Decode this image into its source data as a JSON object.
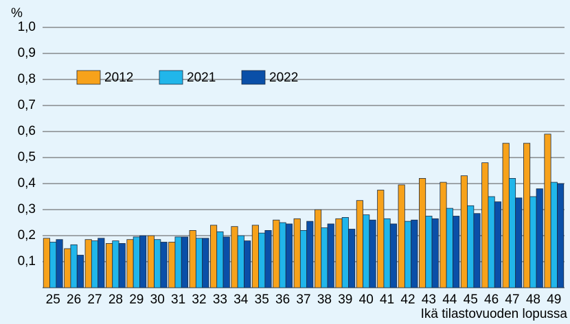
{
  "chart_data": {
    "type": "bar",
    "y_label": "%",
    "x_label": "Ikä tilastovuoden lopussa",
    "categories": [
      "25",
      "26",
      "27",
      "28",
      "29",
      "30",
      "31",
      "32",
      "33",
      "34",
      "35",
      "36",
      "37",
      "38",
      "39",
      "40",
      "41",
      "42",
      "43",
      "44",
      "45",
      "46",
      "47",
      "48",
      "49"
    ],
    "series": [
      {
        "name": "2012",
        "color": "#f7a21b",
        "values": [
          0.19,
          0.15,
          0.185,
          0.17,
          0.185,
          0.2,
          0.175,
          0.22,
          0.24,
          0.235,
          0.24,
          0.26,
          0.265,
          0.3,
          0.265,
          0.335,
          0.375,
          0.395,
          0.42,
          0.405,
          0.43,
          0.48,
          0.555,
          0.555,
          0.59
        ]
      },
      {
        "name": "2021",
        "color": "#21b6ea",
        "values": [
          0.175,
          0.165,
          0.18,
          0.18,
          0.195,
          0.185,
          0.195,
          0.19,
          0.215,
          0.2,
          0.21,
          0.25,
          0.22,
          0.23,
          0.27,
          0.28,
          0.265,
          0.255,
          0.275,
          0.305,
          0.315,
          0.35,
          0.42,
          0.35,
          0.405
        ]
      },
      {
        "name": "2022",
        "color": "#0a4fa8",
        "values": [
          0.185,
          0.125,
          0.19,
          0.17,
          0.2,
          0.175,
          0.195,
          0.19,
          0.195,
          0.18,
          0.22,
          0.245,
          0.255,
          0.245,
          0.225,
          0.26,
          0.245,
          0.26,
          0.265,
          0.275,
          0.285,
          0.33,
          0.345,
          0.38,
          0.4
        ]
      }
    ],
    "ylim": [
      0,
      1
    ],
    "yticks": [
      {
        "value": 0.1,
        "label": "0,1"
      },
      {
        "value": 0.2,
        "label": "0,2"
      },
      {
        "value": 0.3,
        "label": "0,3"
      },
      {
        "value": 0.4,
        "label": "0,4"
      },
      {
        "value": 0.5,
        "label": "0,5"
      },
      {
        "value": 0.6,
        "label": "0,6"
      },
      {
        "value": 0.7,
        "label": "0,7"
      },
      {
        "value": 0.8,
        "label": "0,8"
      },
      {
        "value": 0.9,
        "label": "0,9"
      },
      {
        "value": 1,
        "label": "1,0"
      }
    ],
    "grid": true,
    "legend": "top-left"
  }
}
